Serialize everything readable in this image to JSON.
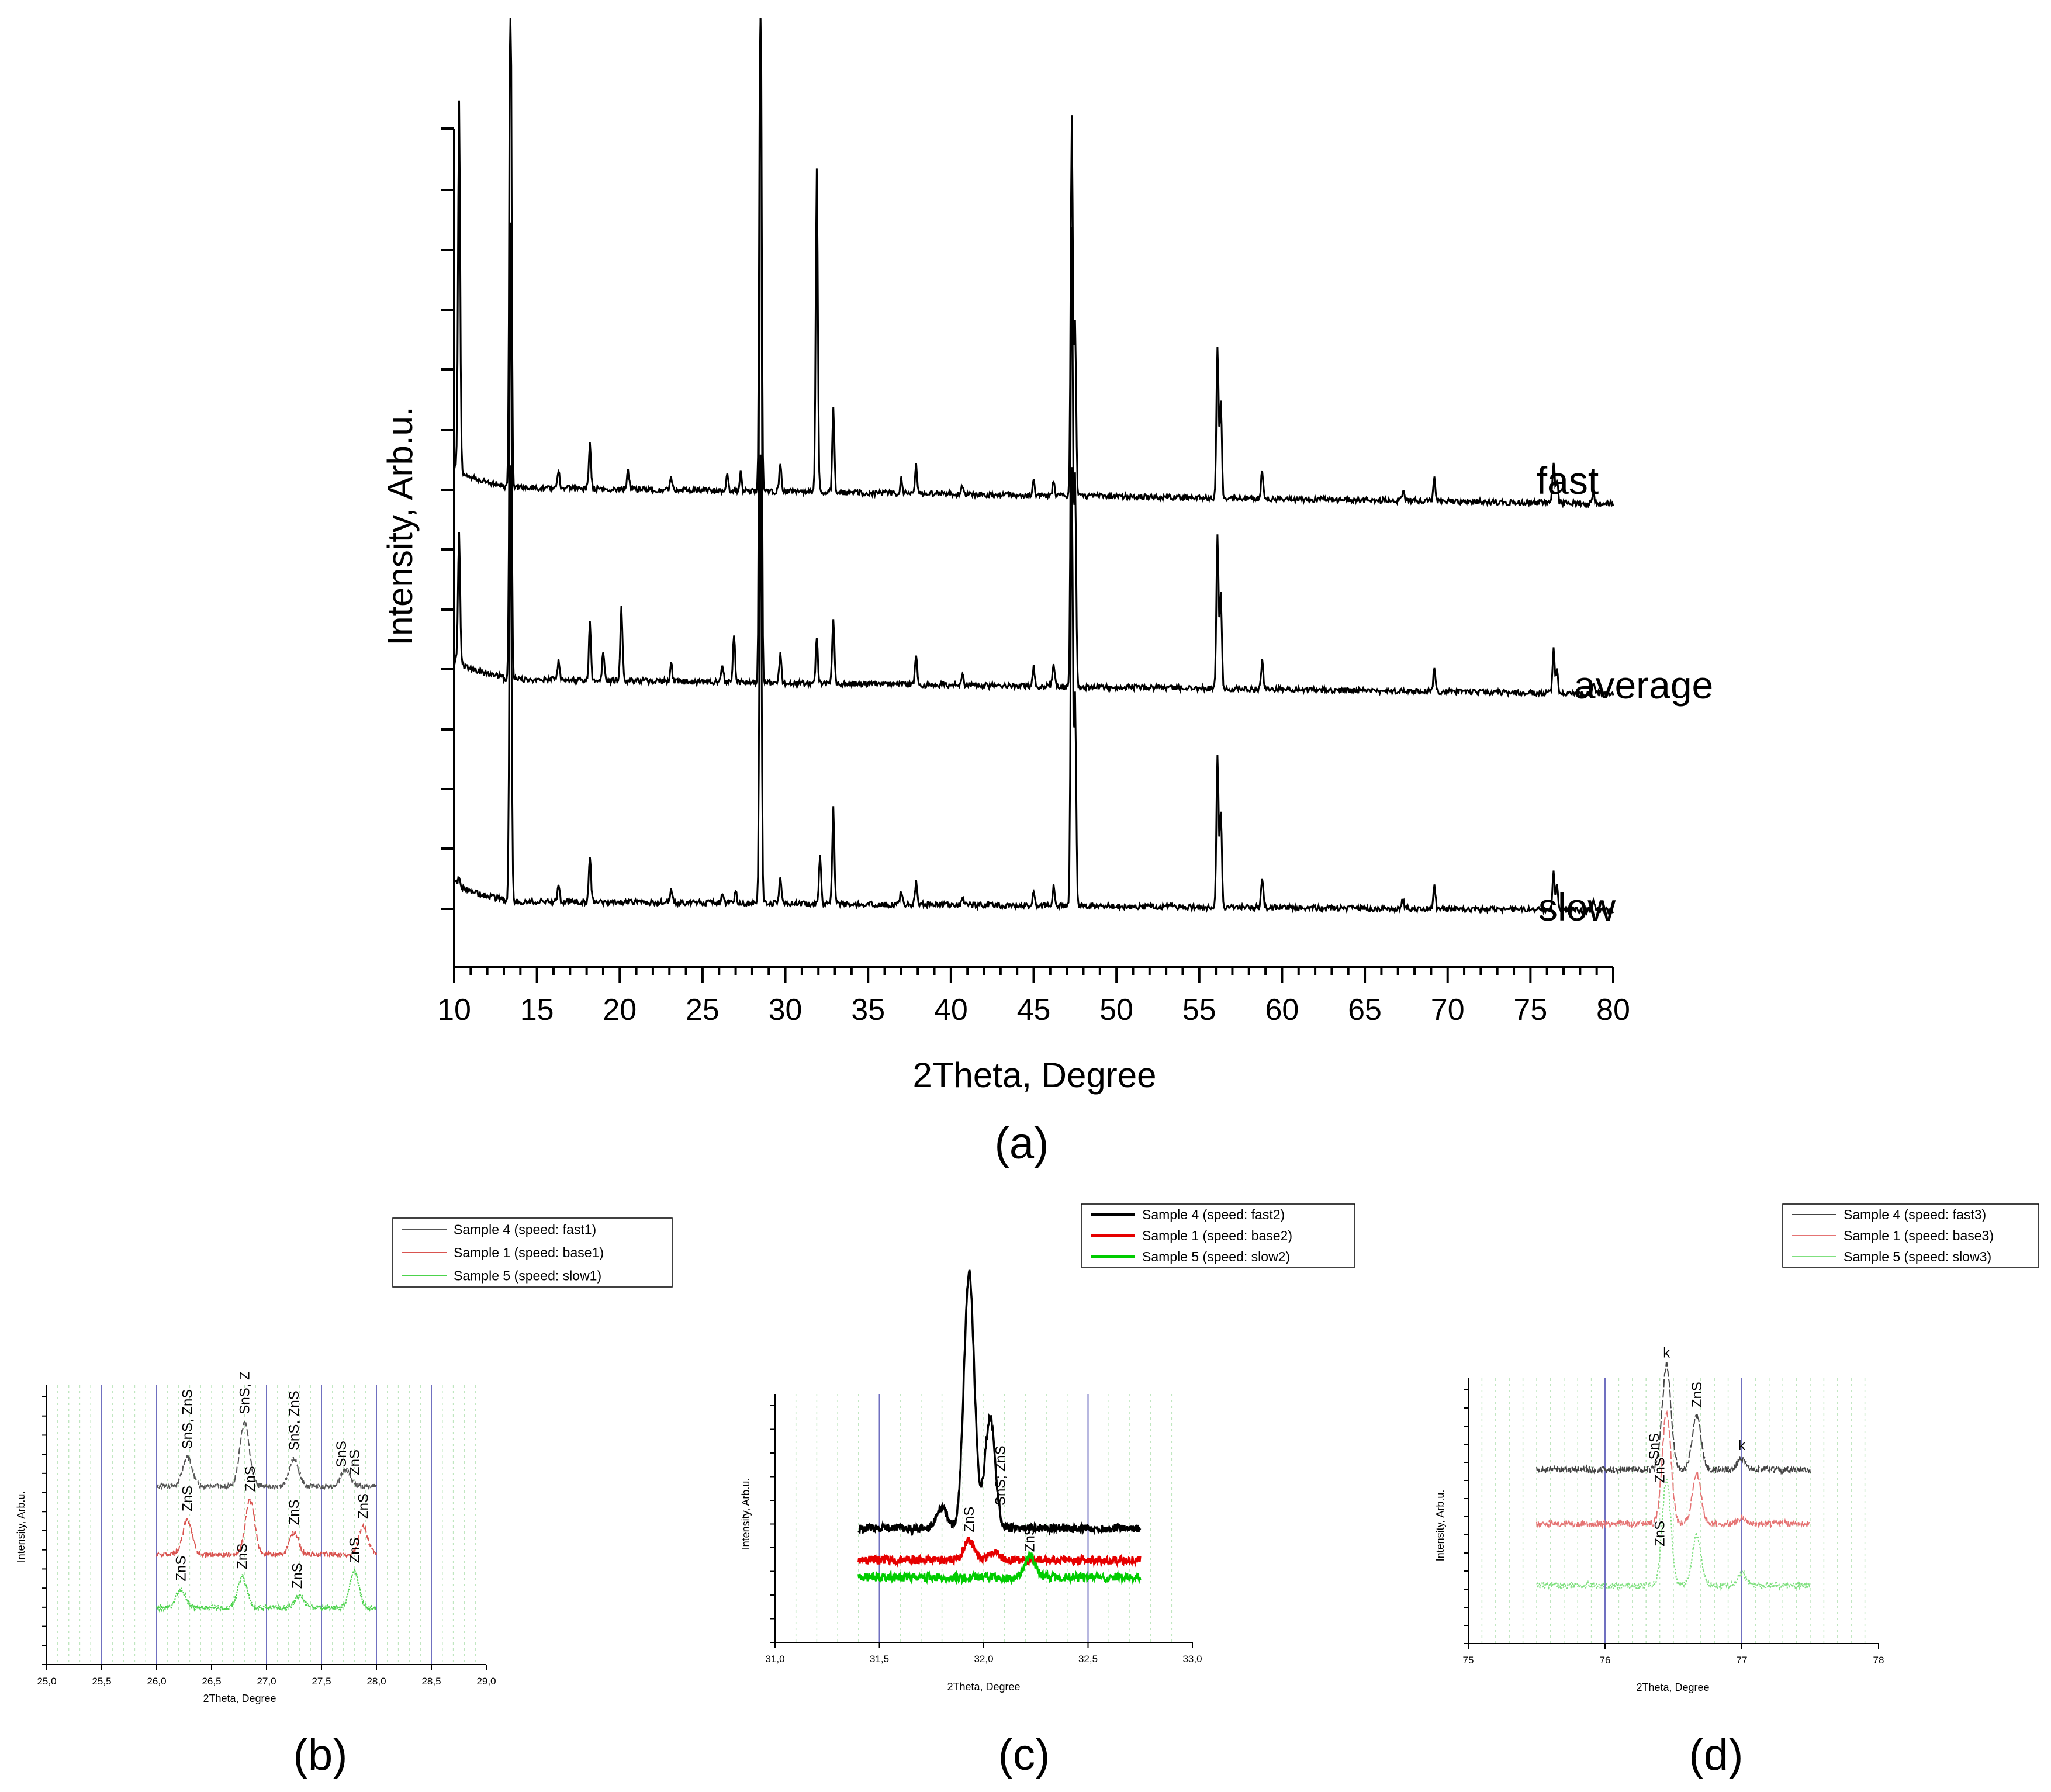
{
  "figure": {
    "panel_labels": [
      "(a)",
      "(b)",
      "(c)",
      "(d)"
    ]
  },
  "chart_data": [
    {
      "panel": "(a)",
      "type": "line",
      "title": "",
      "xlabel": "2Theta, Degree",
      "ylabel": "Intensity, Arb.u.",
      "xlim": [
        10,
        80
      ],
      "ylim": [
        0,
        1
      ],
      "xticks": [
        "10",
        "15",
        "20",
        "25",
        "30",
        "35",
        "40",
        "45",
        "50",
        "55",
        "60",
        "65",
        "70",
        "75",
        "80"
      ],
      "grid": false,
      "color": "#000000",
      "series": [
        {
          "name": "fast",
          "baseline": 0.506,
          "baseline_end": 0.488,
          "peaks": [
            [
              10.3,
              0.39
            ],
            [
              13.4,
              0.6
            ],
            [
              16.3,
              0.02
            ],
            [
              18.2,
              0.05
            ],
            [
              20.5,
              0.02
            ],
            [
              23.1,
              0.015
            ],
            [
              26.5,
              0.02
            ],
            [
              27.3,
              0.02
            ],
            [
              28.5,
              0.6
            ],
            [
              29.7,
              0.03
            ],
            [
              31.9,
              0.34
            ],
            [
              32.9,
              0.09
            ],
            [
              37.0,
              0.015
            ],
            [
              37.9,
              0.03
            ],
            [
              40.7,
              0.01
            ],
            [
              45.0,
              0.015
            ],
            [
              46.2,
              0.015
            ],
            [
              47.3,
              0.4
            ],
            [
              47.5,
              0.18
            ],
            [
              56.1,
              0.16
            ],
            [
              56.3,
              0.1
            ],
            [
              58.8,
              0.03
            ],
            [
              67.3,
              0.01
            ],
            [
              69.2,
              0.025
            ],
            [
              76.4,
              0.045
            ],
            [
              76.6,
              0.025
            ],
            [
              78.8,
              0.01
            ]
          ]
        },
        {
          "name": "average",
          "baseline": 0.304,
          "baseline_end": 0.288,
          "peaks": [
            [
              10.3,
              0.14
            ],
            [
              13.4,
              0.48
            ],
            [
              16.3,
              0.02
            ],
            [
              18.2,
              0.06
            ],
            [
              19.0,
              0.03
            ],
            [
              20.1,
              0.08
            ],
            [
              23.1,
              0.02
            ],
            [
              26.2,
              0.02
            ],
            [
              26.9,
              0.05
            ],
            [
              28.5,
              0.8
            ],
            [
              29.7,
              0.03
            ],
            [
              31.9,
              0.05
            ],
            [
              32.9,
              0.07
            ],
            [
              37.9,
              0.03
            ],
            [
              40.7,
              0.01
            ],
            [
              45.0,
              0.02
            ],
            [
              46.2,
              0.025
            ],
            [
              47.3,
              0.48
            ],
            [
              47.5,
              0.22
            ],
            [
              56.1,
              0.16
            ],
            [
              56.3,
              0.1
            ],
            [
              58.8,
              0.03
            ],
            [
              69.2,
              0.025
            ],
            [
              76.4,
              0.045
            ],
            [
              76.6,
              0.025
            ],
            [
              78.8,
              0.01
            ]
          ]
        },
        {
          "name": "slow",
          "baseline": 0.07,
          "baseline_end": 0.06,
          "peaks": [
            [
              10.3,
              0.01
            ],
            [
              13.4,
              0.46
            ],
            [
              16.3,
              0.02
            ],
            [
              18.2,
              0.05
            ],
            [
              23.1,
              0.015
            ],
            [
              26.2,
              0.01
            ],
            [
              27.0,
              0.015
            ],
            [
              28.5,
              0.47
            ],
            [
              29.7,
              0.03
            ],
            [
              32.1,
              0.05
            ],
            [
              32.9,
              0.1
            ],
            [
              37.0,
              0.015
            ],
            [
              37.9,
              0.025
            ],
            [
              40.7,
              0.01
            ],
            [
              45.0,
              0.015
            ],
            [
              46.2,
              0.02
            ],
            [
              47.3,
              0.46
            ],
            [
              47.5,
              0.22
            ],
            [
              56.1,
              0.16
            ],
            [
              56.3,
              0.1
            ],
            [
              58.8,
              0.03
            ],
            [
              67.3,
              0.01
            ],
            [
              69.2,
              0.025
            ],
            [
              76.4,
              0.04
            ],
            [
              76.6,
              0.025
            ],
            [
              78.8,
              0.01
            ]
          ]
        }
      ]
    },
    {
      "panel": "(b)",
      "type": "line",
      "xlabel": "2Theta, Degree",
      "ylabel": "Intensity, Arb.u.",
      "xlim": [
        25.0,
        29.0
      ],
      "ylim": [
        0,
        1
      ],
      "xticks": [
        "25,0",
        "25,5",
        "26,0",
        "26,5",
        "27,0",
        "27,5",
        "28,0",
        "28,5",
        "29,0"
      ],
      "xrange_data": [
        26.0,
        28.0
      ],
      "grid": true,
      "legend_position": "top-right",
      "series": [
        {
          "name": "Sample 4 (speed: fast1)",
          "color": "#555555",
          "baseline": 1.02,
          "peaks": [
            [
              26.28,
              0.19
            ],
            [
              26.8,
              0.42
            ],
            [
              27.25,
              0.18
            ],
            [
              27.72,
              0.11
            ]
          ],
          "annotations": [
            {
              "text": "SnS, ZnS",
              "x": 26.28
            },
            {
              "text": "SnS, Z",
              "x": 26.8
            },
            {
              "text": "SnS, ZnS",
              "x": 27.25
            },
            {
              "text": "SnS",
              "x": 27.68
            },
            {
              "text": "ZnS",
              "x": 27.8
            }
          ]
        },
        {
          "name": "Sample 1 (speed: base1)",
          "color": "#d9534f",
          "baseline": 0.57,
          "peaks": [
            [
              26.28,
              0.23
            ],
            [
              26.85,
              0.36
            ],
            [
              27.25,
              0.14
            ],
            [
              27.88,
              0.18
            ]
          ],
          "annotations": [
            {
              "text": "ZnS",
              "x": 26.28
            },
            {
              "text": "ZnS",
              "x": 26.85
            },
            {
              "text": "ZnS",
              "x": 27.25
            },
            {
              "text": "ZnS",
              "x": 27.88
            }
          ]
        },
        {
          "name": "Sample 5 (speed: slow1)",
          "color": "#4cd34c",
          "baseline": 0.22,
          "peaks": [
            [
              26.22,
              0.12
            ],
            [
              26.78,
              0.2
            ],
            [
              27.3,
              0.08
            ],
            [
              27.8,
              0.24
            ]
          ],
          "annotations": [
            {
              "text": "ZnS",
              "x": 26.22
            },
            {
              "text": "ZnS",
              "x": 26.78
            },
            {
              "text": "ZnS",
              "x": 27.28
            },
            {
              "text": "ZnS",
              "x": 27.8
            }
          ]
        }
      ]
    },
    {
      "panel": "(c)",
      "type": "line",
      "xlabel": "2Theta, Degree",
      "ylabel": "Intensity, Arb.u.",
      "xlim": [
        31.0,
        33.0
      ],
      "ylim": [
        0,
        1
      ],
      "xticks": [
        "31,0",
        "31,5",
        "32,0",
        "32,5",
        "33,0"
      ],
      "xrange_data": [
        31.4,
        32.75
      ],
      "grid": true,
      "legend_position": "top-right",
      "series": [
        {
          "name": "Sample 4 (speed: fast2)",
          "color": "#000000",
          "baseline": 0.37,
          "peaks": [
            [
              31.93,
              1.04
            ],
            [
              32.03,
              0.45
            ],
            [
              31.8,
              0.08
            ]
          ],
          "annotations": [
            {
              "text": "SnS; ZnS",
              "x": 32.08
            }
          ]
        },
        {
          "name": "Sample 1 (speed: base2)",
          "color": "#e60000",
          "baseline": 0.24,
          "peaks": [
            [
              31.93,
              0.08
            ],
            [
              32.05,
              0.03
            ]
          ],
          "annotations": [
            {
              "text": "ZnS",
              "x": 31.93
            },
            {
              "text": "ZnS",
              "x": 32.22
            }
          ]
        },
        {
          "name": "Sample 5 (speed: slow2)",
          "color": "#00cc00",
          "baseline": 0.17,
          "peaks": [
            [
              32.22,
              0.09
            ]
          ],
          "annotations": []
        }
      ]
    },
    {
      "panel": "(d)",
      "type": "line",
      "xlabel": "2Theta, Degree",
      "ylabel": "Intensity, Arb.u.",
      "xlim": [
        75,
        78
      ],
      "ylim": [
        0,
        1
      ],
      "xticks": [
        "75",
        "76",
        "77",
        "78"
      ],
      "xrange_data": [
        75.5,
        77.5
      ],
      "grid": true,
      "legend_position": "top-right",
      "series": [
        {
          "name": "Sample 4 (speed: fast3)",
          "color": "#444444",
          "baseline": 0.78,
          "peaks": [
            [
              76.45,
              0.54
            ],
            [
              76.67,
              0.28
            ],
            [
              77.0,
              0.06
            ]
          ],
          "annotations": [
            {
              "text": "k",
              "x": 76.45
            },
            {
              "text": "SnS",
              "x": 76.36
            },
            {
              "text": "ZnS",
              "x": 76.67
            },
            {
              "text": "k",
              "x": 77.0
            }
          ]
        },
        {
          "name": "Sample 1 (speed: base3)",
          "color": "#e57373",
          "baseline": 0.5,
          "peaks": [
            [
              76.45,
              0.58
            ],
            [
              76.67,
              0.26
            ],
            [
              77.0,
              0.03
            ]
          ],
          "annotations": [
            {
              "text": "ZnS",
              "x": 76.4
            }
          ]
        },
        {
          "name": "Sample 5 (speed: slow3)",
          "color": "#7fe07f",
          "baseline": 0.18,
          "peaks": [
            [
              76.45,
              0.55
            ],
            [
              76.67,
              0.26
            ],
            [
              77.0,
              0.06
            ]
          ],
          "annotations": [
            {
              "text": "ZnS",
              "x": 76.4
            }
          ]
        }
      ]
    }
  ]
}
